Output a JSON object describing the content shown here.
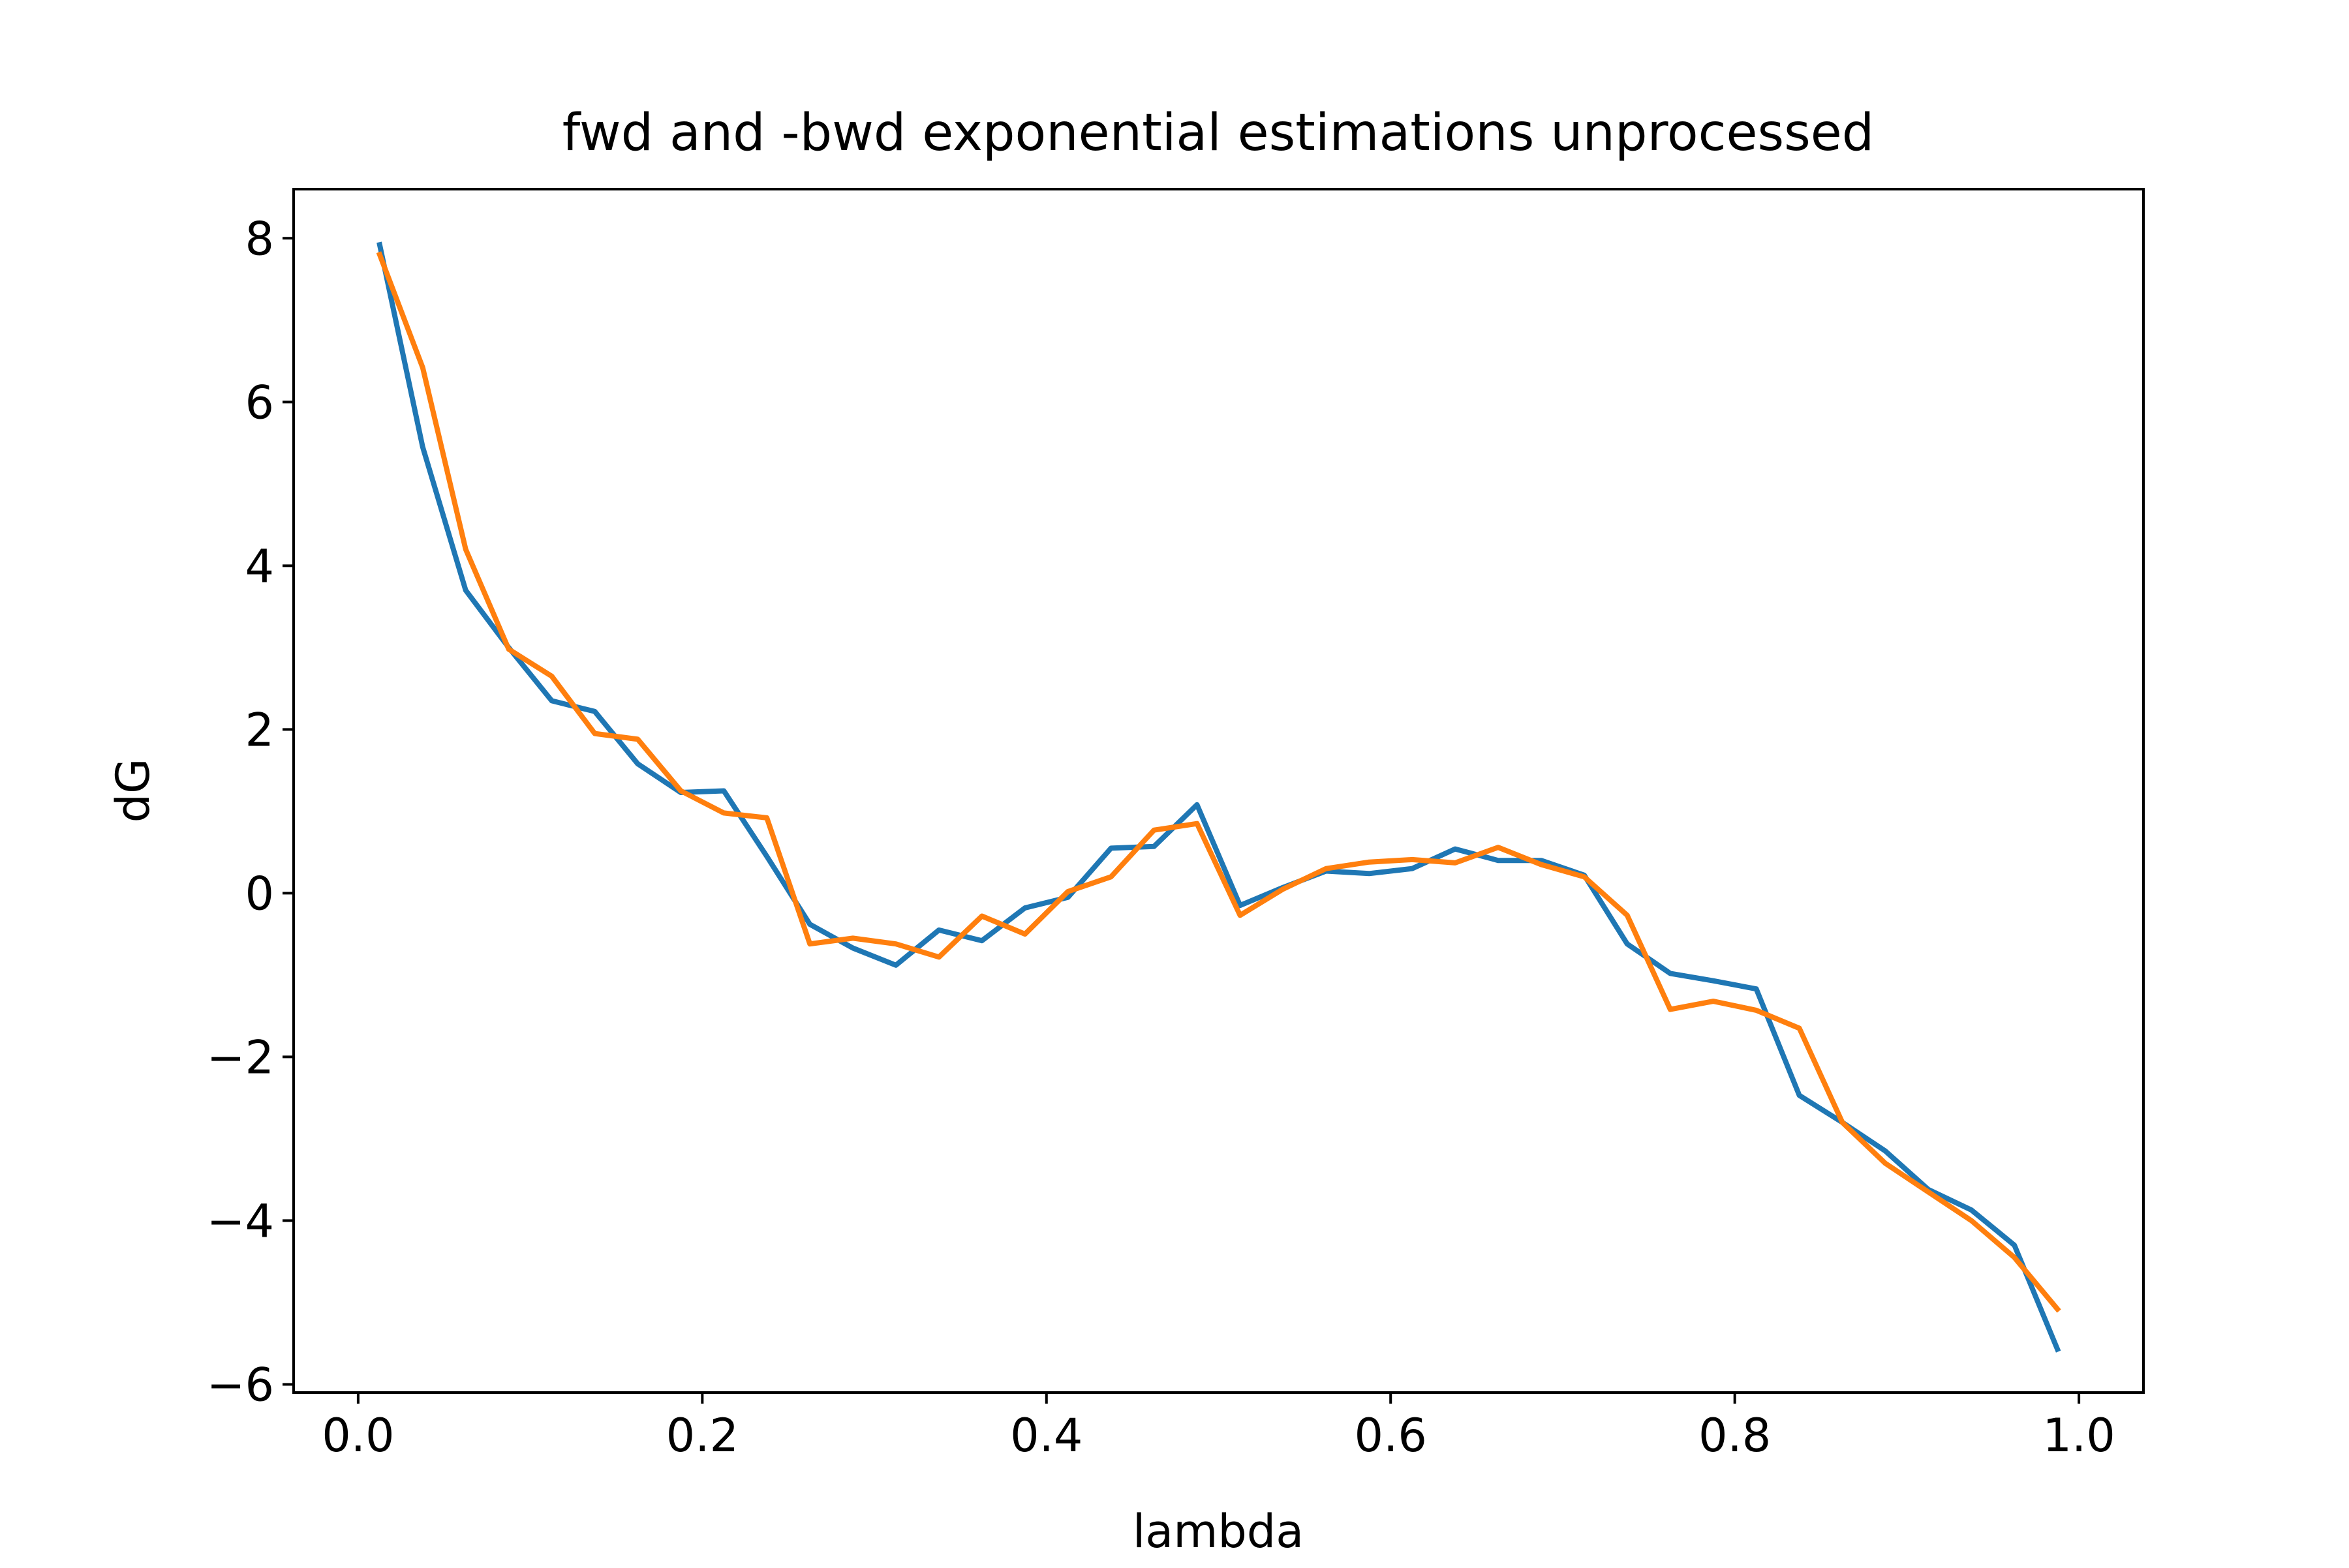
{
  "chart_data": {
    "type": "line",
    "title": "fwd and -bwd exponential estimations unprocessed",
    "xlabel": "lambda",
    "ylabel": "dG",
    "xlim": [
      -0.0375,
      1.0375
    ],
    "ylim": [
      -6.1,
      8.6
    ],
    "grid": false,
    "x_ticks": [
      0.0,
      0.2,
      0.4,
      0.6,
      0.8,
      1.0
    ],
    "x_tick_labels": [
      "0.0",
      "0.2",
      "0.4",
      "0.6",
      "0.8",
      "1.0"
    ],
    "y_ticks": [
      -6,
      -4,
      -2,
      0,
      2,
      4,
      6,
      8
    ],
    "y_tick_labels": [
      "−6",
      "−4",
      "−2",
      "0",
      "2",
      "4",
      "6",
      "8"
    ],
    "x": [
      0.0125,
      0.0375,
      0.0625,
      0.0875,
      0.1125,
      0.1375,
      0.1625,
      0.1875,
      0.2125,
      0.2375,
      0.2625,
      0.2875,
      0.3125,
      0.3375,
      0.3625,
      0.3875,
      0.4125,
      0.4375,
      0.4625,
      0.4875,
      0.5125,
      0.5375,
      0.5625,
      0.5875,
      0.6125,
      0.6375,
      0.6625,
      0.6875,
      0.7125,
      0.7375,
      0.7625,
      0.7875,
      0.8125,
      0.8375,
      0.8625,
      0.8875,
      0.9125,
      0.9375,
      0.9625,
      0.9875
    ],
    "series": [
      {
        "color": "#1f77b4",
        "values": [
          7.92,
          5.45,
          3.7,
          3.0,
          2.35,
          2.22,
          1.58,
          1.23,
          1.25,
          0.45,
          -0.38,
          -0.67,
          -0.88,
          -0.45,
          -0.58,
          -0.18,
          -0.05,
          0.55,
          0.57,
          1.08,
          -0.15,
          0.07,
          0.27,
          0.24,
          0.3,
          0.54,
          0.4,
          0.4,
          0.22,
          -0.62,
          -0.98,
          -1.07,
          -1.17,
          -2.47,
          -2.8,
          -3.15,
          -3.62,
          -3.87,
          -4.3,
          -5.57
        ]
      },
      {
        "color": "#ff7f0e",
        "values": [
          7.8,
          6.42,
          4.2,
          2.98,
          2.65,
          1.95,
          1.88,
          1.25,
          0.98,
          0.92,
          -0.62,
          -0.55,
          -0.62,
          -0.78,
          -0.28,
          -0.5,
          0.02,
          0.2,
          0.77,
          0.85,
          -0.27,
          0.05,
          0.3,
          0.38,
          0.41,
          0.37,
          0.56,
          0.35,
          0.2,
          -0.27,
          -1.42,
          -1.32,
          -1.43,
          -1.65,
          -2.8,
          -3.3,
          -3.65,
          -4.0,
          -4.45,
          -5.08
        ]
      }
    ]
  }
}
